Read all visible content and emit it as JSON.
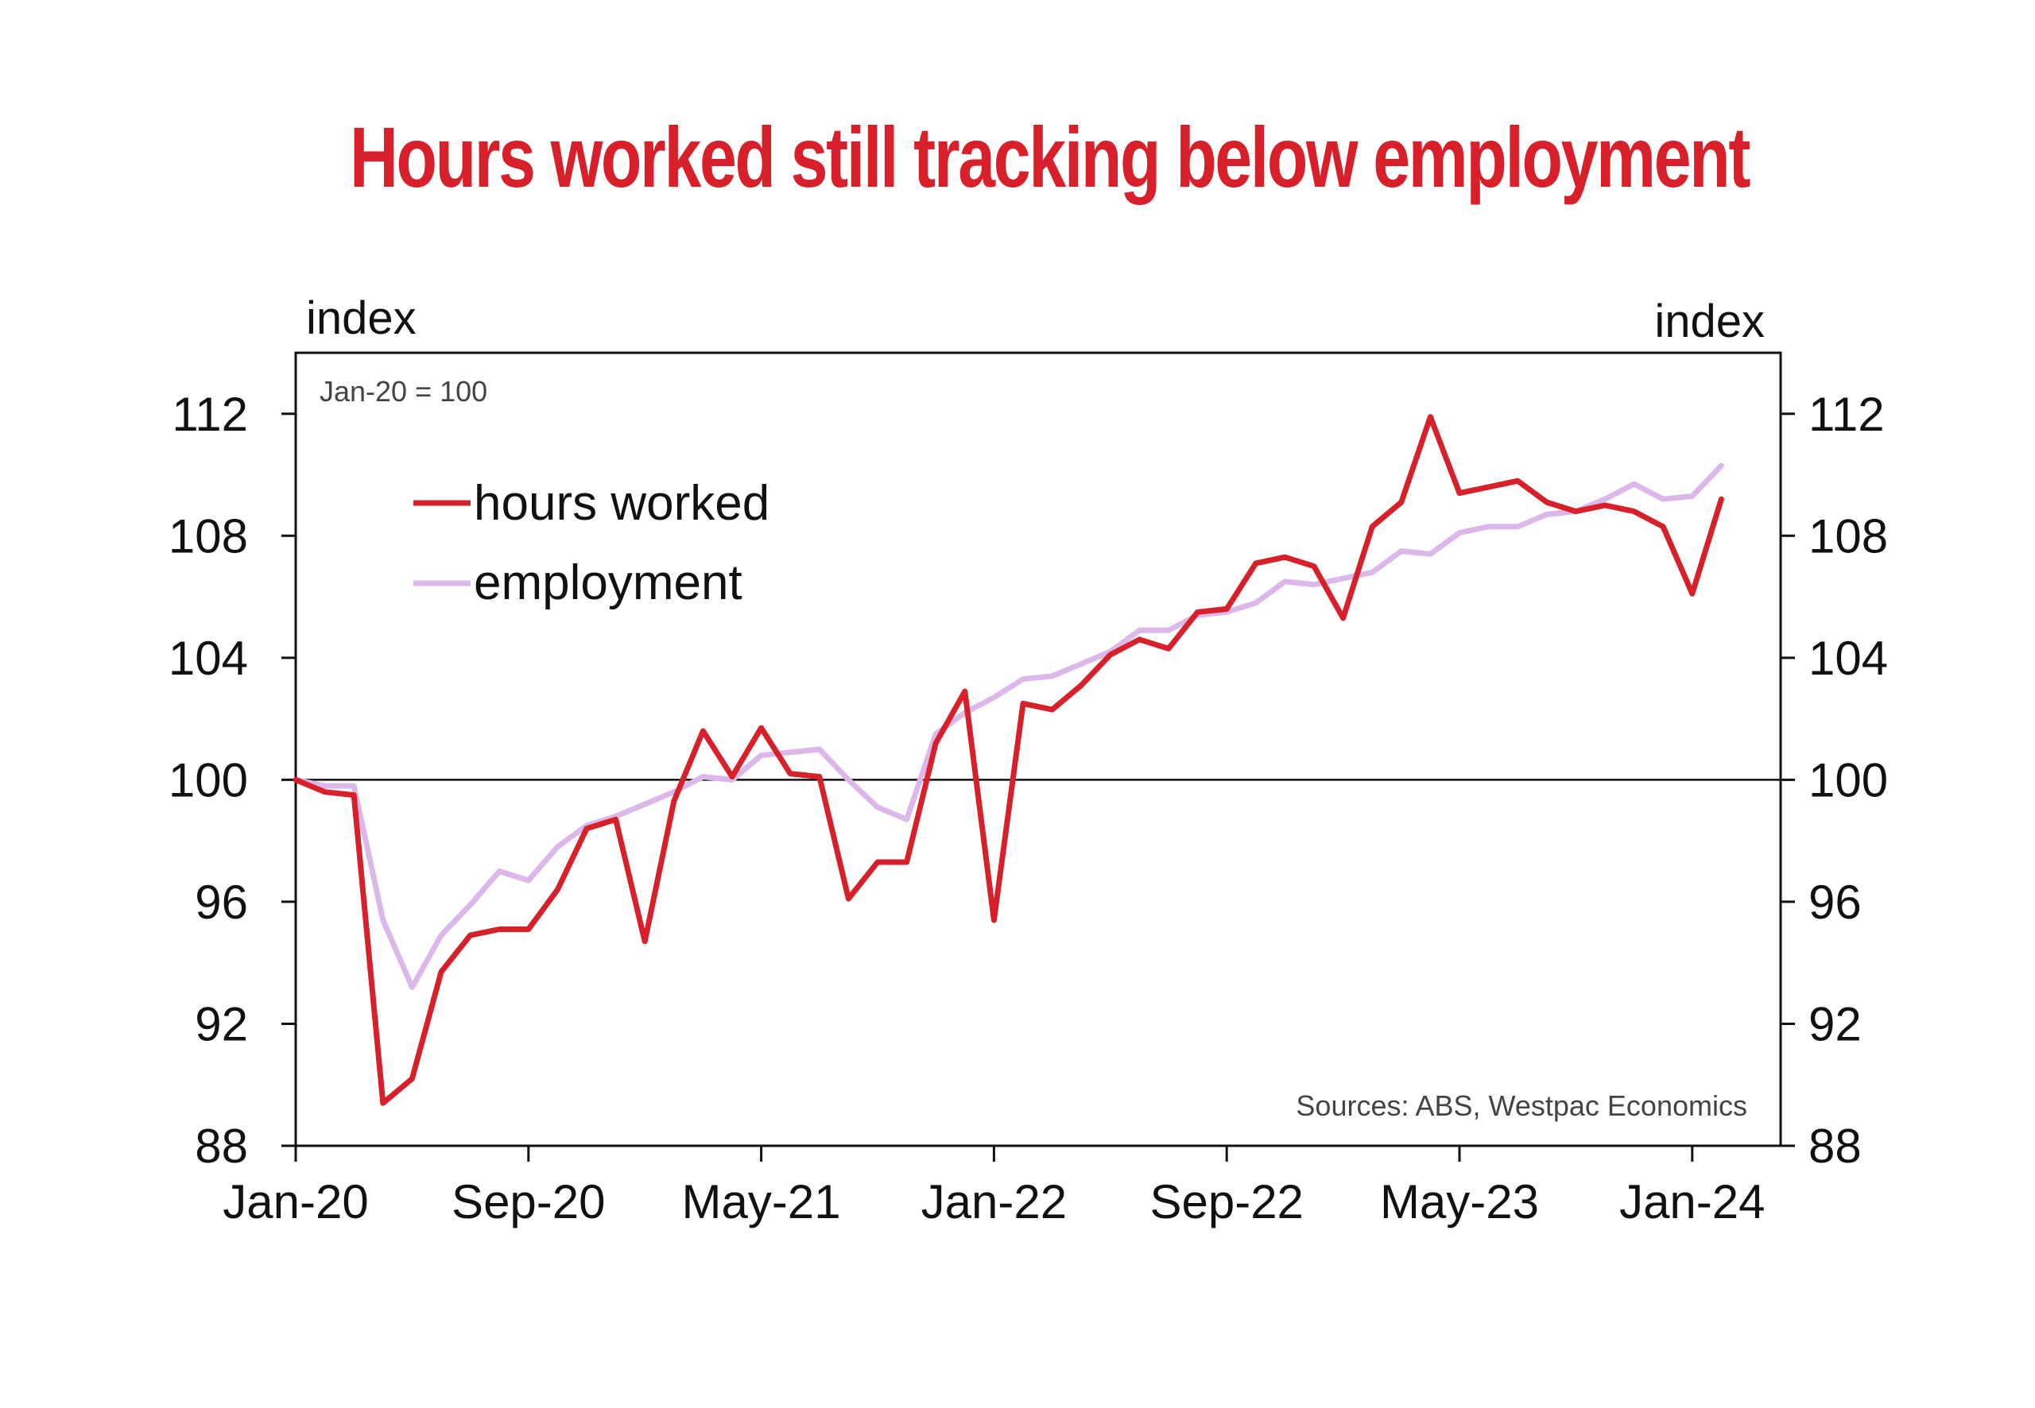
{
  "chart_data": {
    "type": "line",
    "title": "Hours worked still tracking below employment",
    "ylabel_left": "index",
    "ylabel_right": "index",
    "note": "Jan-20 = 100",
    "source": "Sources: ABS, Westpac Economics",
    "ylim": [
      88,
      114
    ],
    "yticks": [
      88,
      92,
      96,
      100,
      104,
      108,
      112
    ],
    "reference_line": 100,
    "x_start": "Jan-20",
    "x_tick_labels": [
      "Jan-20",
      "Sep-20",
      "May-21",
      "Jan-22",
      "Sep-22",
      "May-23",
      "Jan-24"
    ],
    "legend": {
      "placement": "top-left"
    },
    "grid": false,
    "series": [
      {
        "name": "hours worked",
        "color": "#d7202a",
        "values": [
          100,
          99.6,
          99.5,
          89.4,
          90.2,
          93.7,
          94.9,
          95.1,
          95.1,
          96.4,
          98.4,
          98.7,
          94.7,
          99.3,
          101.6,
          100.1,
          101.7,
          100.2,
          100.1,
          96.1,
          97.3,
          97.3,
          101.2,
          102.9,
          95.4,
          102.5,
          102.3,
          103.1,
          104.1,
          104.6,
          104.3,
          105.5,
          105.6,
          107.1,
          107.3,
          107.0,
          105.3,
          108.3,
          109.1,
          111.9,
          109.4,
          109.6,
          109.8,
          109.1,
          108.8,
          109.0,
          108.8,
          108.3,
          106.1,
          109.2
        ]
      },
      {
        "name": "employment",
        "color": "#dcb8ea",
        "values": [
          100,
          99.8,
          99.8,
          95.4,
          93.2,
          94.9,
          95.9,
          97.0,
          96.7,
          97.8,
          98.5,
          98.8,
          99.2,
          99.6,
          100.1,
          100.0,
          100.8,
          100.9,
          101.0,
          100.0,
          99.1,
          98.7,
          101.5,
          102.2,
          102.7,
          103.3,
          103.4,
          103.8,
          104.2,
          104.9,
          104.9,
          105.4,
          105.5,
          105.8,
          106.5,
          106.4,
          106.6,
          106.8,
          107.5,
          107.4,
          108.1,
          108.3,
          108.3,
          108.7,
          108.8,
          109.2,
          109.7,
          109.2,
          109.3,
          110.3
        ]
      }
    ]
  }
}
